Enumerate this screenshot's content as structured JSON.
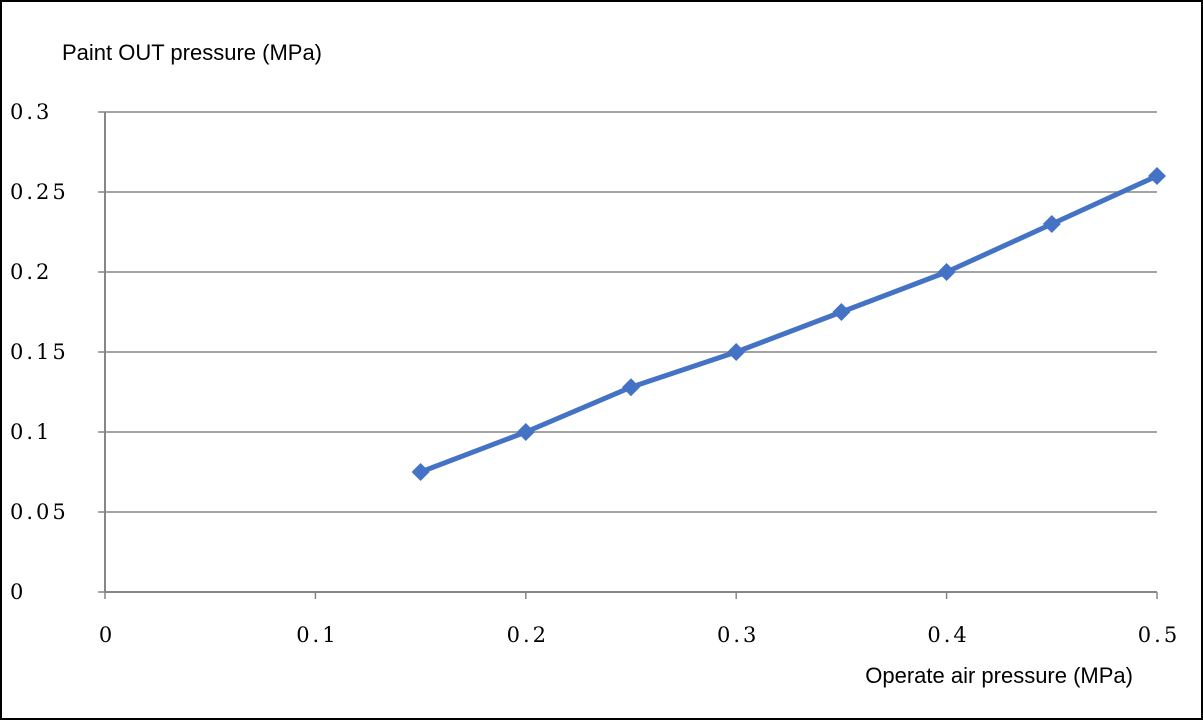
{
  "chart_data": {
    "type": "line",
    "title": "",
    "ylabel": "Paint OUT pressure (MPa)",
    "xlabel": "Operate air pressure (MPa)",
    "xlim": [
      0,
      0.5
    ],
    "ylim": [
      0,
      0.3
    ],
    "x_ticks": [
      "0",
      "0.1",
      "0.2",
      "0.3",
      "0.4",
      "0.5"
    ],
    "y_ticks": [
      "0",
      "0.05",
      "0.1",
      "0.15",
      "0.2",
      "0.25",
      "0.3"
    ],
    "x_tick_values": [
      0,
      0.1,
      0.2,
      0.3,
      0.4,
      0.5
    ],
    "y_tick_values": [
      0,
      0.05,
      0.1,
      0.15,
      0.2,
      0.25,
      0.3
    ],
    "grid": "horizontal",
    "legend": "none",
    "series": [
      {
        "color": "#4472C4",
        "marker": "diamond",
        "x": [
          0.15,
          0.2,
          0.25,
          0.3,
          0.35,
          0.4,
          0.45,
          0.5
        ],
        "y": [
          0.075,
          0.1,
          0.128,
          0.15,
          0.175,
          0.2,
          0.23,
          0.26
        ]
      }
    ]
  }
}
